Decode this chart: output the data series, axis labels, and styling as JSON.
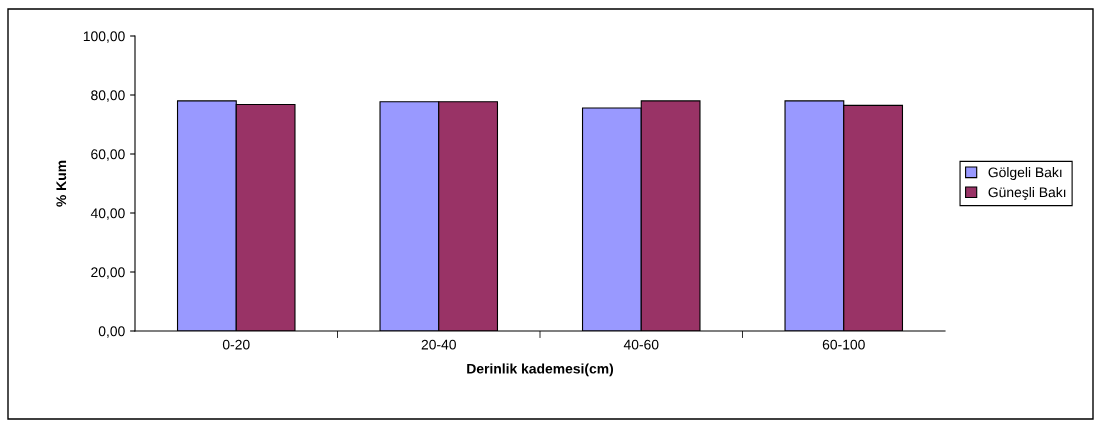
{
  "chart_data": {
    "type": "bar",
    "xlabel": "Derinlik kademesi(cm)",
    "ylabel": "% Kum",
    "categories": [
      "0-20",
      "20-40",
      "40-60",
      "60-100"
    ],
    "series": [
      {
        "name": "Gölgeli Bakı",
        "color": "#9999ff",
        "values": [
          78.0,
          77.7,
          75.6,
          78.0
        ]
      },
      {
        "name": "Güneşli Bakı",
        "color": "#993366",
        "values": [
          76.8,
          77.7,
          78.0,
          76.5
        ]
      }
    ],
    "ylim": [
      0,
      100
    ],
    "yticks": [
      {
        "value": 0,
        "label": "0,00"
      },
      {
        "value": 20,
        "label": "20,00"
      },
      {
        "value": 40,
        "label": "40,00"
      },
      {
        "value": 60,
        "label": "60,00"
      },
      {
        "value": 80,
        "label": "80,00"
      },
      {
        "value": 100,
        "label": "100,00"
      }
    ],
    "grid": false,
    "legend": "right"
  }
}
